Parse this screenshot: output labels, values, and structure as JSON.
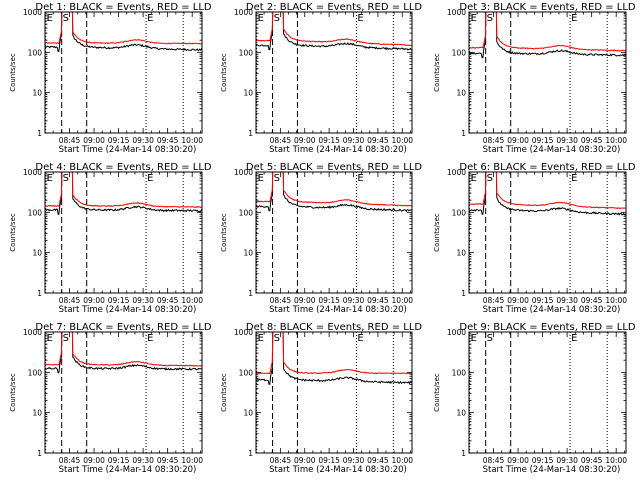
{
  "chart_data": {
    "type": "line",
    "layout": "3x3 grid of log-scale time series panels",
    "common": {
      "xlabel": "Start Time (24-Mar-14 08:30:20)",
      "ylabel": "Counts/sec",
      "y_scale": "log",
      "ylim": [
        1,
        1000
      ],
      "y_ticks": [
        "1",
        "10",
        "100",
        "1000"
      ],
      "x_range_minutes_from_0830": [
        0,
        96
      ],
      "x_ticks": [
        "08:45",
        "09:00",
        "09:15",
        "09:30",
        "09:45",
        "10:00"
      ],
      "x_tick_minutes": [
        15,
        30,
        45,
        60,
        75,
        90
      ],
      "series_colors": {
        "events": "#000000",
        "lld": "#ff0000"
      },
      "markers": [
        {
          "label": "E",
          "minute": 0.4,
          "line_style": "dotted"
        },
        {
          "label": "S",
          "minute": 10.2,
          "line_style": "dashed"
        },
        {
          "label": "",
          "minute": 25.5,
          "line_style": "dashed"
        },
        {
          "label": "E",
          "minute": 61.8,
          "line_style": "dotted"
        },
        {
          "label": "",
          "minute": 84.5,
          "line_style": "dotted"
        }
      ],
      "burst_minutes": [
        10.2,
        17.0
      ]
    },
    "panels": [
      {
        "title": "Det 1: BLACK = Events, RED = LLD",
        "events_base": 135,
        "lld_base": 170,
        "events_end": 115,
        "lld_end": 165,
        "has_data": true
      },
      {
        "title": "Det 2: BLACK = Events, RED = LLD",
        "events_base": 150,
        "lld_base": 195,
        "events_end": 120,
        "lld_end": 150,
        "has_data": true
      },
      {
        "title": "Det 3: BLACK = Events, RED = LLD",
        "events_base": 95,
        "lld_base": 130,
        "events_end": 85,
        "lld_end": 110,
        "has_data": true
      },
      {
        "title": "Det 4: BLACK = Events, RED = LLD",
        "events_base": 115,
        "lld_base": 145,
        "events_end": 110,
        "lld_end": 135,
        "has_data": true
      },
      {
        "title": "Det 5: BLACK = Events, RED = LLD",
        "events_base": 140,
        "lld_base": 185,
        "events_end": 110,
        "lld_end": 145,
        "has_data": true
      },
      {
        "title": "Det 6: BLACK = Events, RED = LLD",
        "events_base": 115,
        "lld_base": 160,
        "events_end": 90,
        "lld_end": 125,
        "has_data": true
      },
      {
        "title": "Det 7: BLACK = Events, RED = LLD",
        "events_base": 125,
        "lld_base": 155,
        "events_end": 120,
        "lld_end": 145,
        "has_data": true
      },
      {
        "title": "Det 8: BLACK = Events, RED = LLD",
        "events_base": 65,
        "lld_base": 95,
        "events_end": 55,
        "lld_end": 95,
        "has_data": true
      },
      {
        "title": "Det 9: BLACK = Events, RED = LLD",
        "events_base": null,
        "lld_base": null,
        "events_end": null,
        "lld_end": null,
        "has_data": false
      }
    ]
  }
}
